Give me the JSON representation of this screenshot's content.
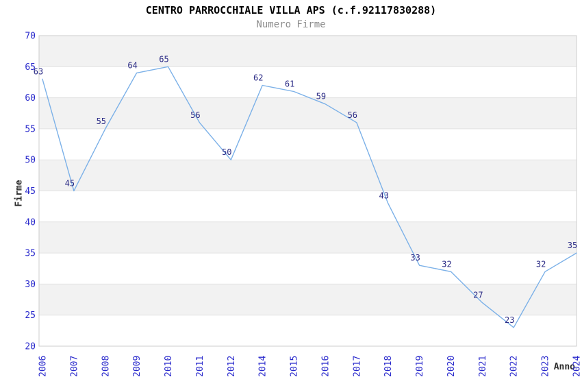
{
  "window": {
    "background": "#ffffff"
  },
  "chart_data": {
    "type": "line",
    "title": "CENTRO PARROCCHIALE VILLA APS (c.f.92117830288)",
    "subtitle": "Numero Firme",
    "xlabel": "Anno",
    "ylabel": "Firme",
    "categories": [
      "2006",
      "2007",
      "2008",
      "2009",
      "2010",
      "2011",
      "2012",
      "2014",
      "2015",
      "2016",
      "2017",
      "2018",
      "2019",
      "2020",
      "2021",
      "2022",
      "2023",
      "2024"
    ],
    "values": [
      63,
      45,
      55,
      64,
      65,
      56,
      50,
      62,
      61,
      59,
      56,
      43,
      33,
      32,
      27,
      23,
      32,
      35
    ],
    "ylim": [
      20,
      70
    ],
    "yticks": [
      20,
      25,
      30,
      35,
      40,
      45,
      50,
      55,
      60,
      65,
      70
    ],
    "gray_bands": [
      [
        65,
        70
      ],
      [
        55,
        60
      ],
      [
        45,
        50
      ],
      [
        35,
        40
      ],
      [
        25,
        30
      ]
    ],
    "grid": "horizontal",
    "legend": "none",
    "point_labels_shown": true,
    "colors": {
      "line": "#7cb1e8",
      "point_label": "#2a2a85",
      "tick_label": "#2929cc",
      "title": "#000000",
      "subtitle": "#8c8c8c",
      "axis_title": "#2b2b2b",
      "band_gray": "#f2f2f2",
      "band_white": "#ffffff",
      "gridline": "#e1e1e1",
      "plot_border": "#cccccc",
      "background": "#ffffff"
    }
  }
}
